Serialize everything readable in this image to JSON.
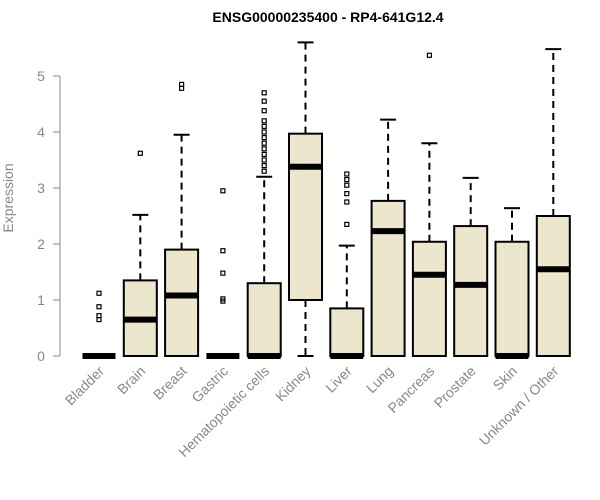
{
  "chart_data": {
    "type": "boxplot",
    "title": "ENSG00000235400 - RP4-641G12.4",
    "ylabel": "Expression",
    "xlabel": "",
    "ylim": [
      0,
      5.8
    ],
    "yticks": [
      0,
      1,
      2,
      3,
      4,
      5
    ],
    "grid": false,
    "box_color": "#ece6cc",
    "categories": [
      "Bladder",
      "Brain",
      "Breast",
      "Gastric",
      "Hematopoietic cells",
      "Kidney",
      "Liver",
      "Lung",
      "Pancreas",
      "Prostate",
      "Skin",
      "Unknown / Other"
    ],
    "boxes": [
      {
        "min": 0,
        "q1": 0,
        "median": 0,
        "q3": 0,
        "max": 0,
        "outliers": [
          0.65,
          0.72,
          0.88,
          1.12
        ]
      },
      {
        "min": 0,
        "q1": 0,
        "median": 0.65,
        "q3": 1.35,
        "max": 2.52,
        "outliers": [
          3.62
        ]
      },
      {
        "min": 0,
        "q1": 0,
        "median": 1.08,
        "q3": 1.9,
        "max": 3.95,
        "outliers": [
          4.78,
          4.85
        ]
      },
      {
        "min": 0,
        "q1": 0,
        "median": 0,
        "q3": 0,
        "max": 0,
        "outliers": [
          0.98,
          1.02,
          1.48,
          1.88,
          2.95
        ]
      },
      {
        "min": 0,
        "q1": 0,
        "median": 0,
        "q3": 1.3,
        "max": 3.2,
        "outliers": [
          3.3,
          3.4,
          3.5,
          3.6,
          3.7,
          3.8,
          3.9,
          4.0,
          4.1,
          4.2,
          4.38,
          4.55,
          4.7
        ]
      },
      {
        "min": 0,
        "q1": 1.0,
        "median": 3.38,
        "q3": 3.97,
        "max": 5.6,
        "outliers": []
      },
      {
        "min": 0,
        "q1": 0,
        "median": 0,
        "q3": 0.85,
        "max": 1.97,
        "outliers": [
          2.35,
          2.75,
          2.9,
          3.05,
          3.15,
          3.25
        ]
      },
      {
        "min": 0,
        "q1": 0,
        "median": 2.23,
        "q3": 2.77,
        "max": 4.22,
        "outliers": []
      },
      {
        "min": 0,
        "q1": 0,
        "median": 1.45,
        "q3": 2.04,
        "max": 3.8,
        "outliers": [
          5.37
        ]
      },
      {
        "min": 0,
        "q1": 0,
        "median": 1.27,
        "q3": 2.32,
        "max": 3.18,
        "outliers": []
      },
      {
        "min": 0,
        "q1": 0,
        "median": 0,
        "q3": 2.04,
        "max": 2.64,
        "outliers": []
      },
      {
        "min": 0,
        "q1": 0,
        "median": 1.55,
        "q3": 2.5,
        "max": 5.48,
        "outliers": []
      }
    ]
  }
}
